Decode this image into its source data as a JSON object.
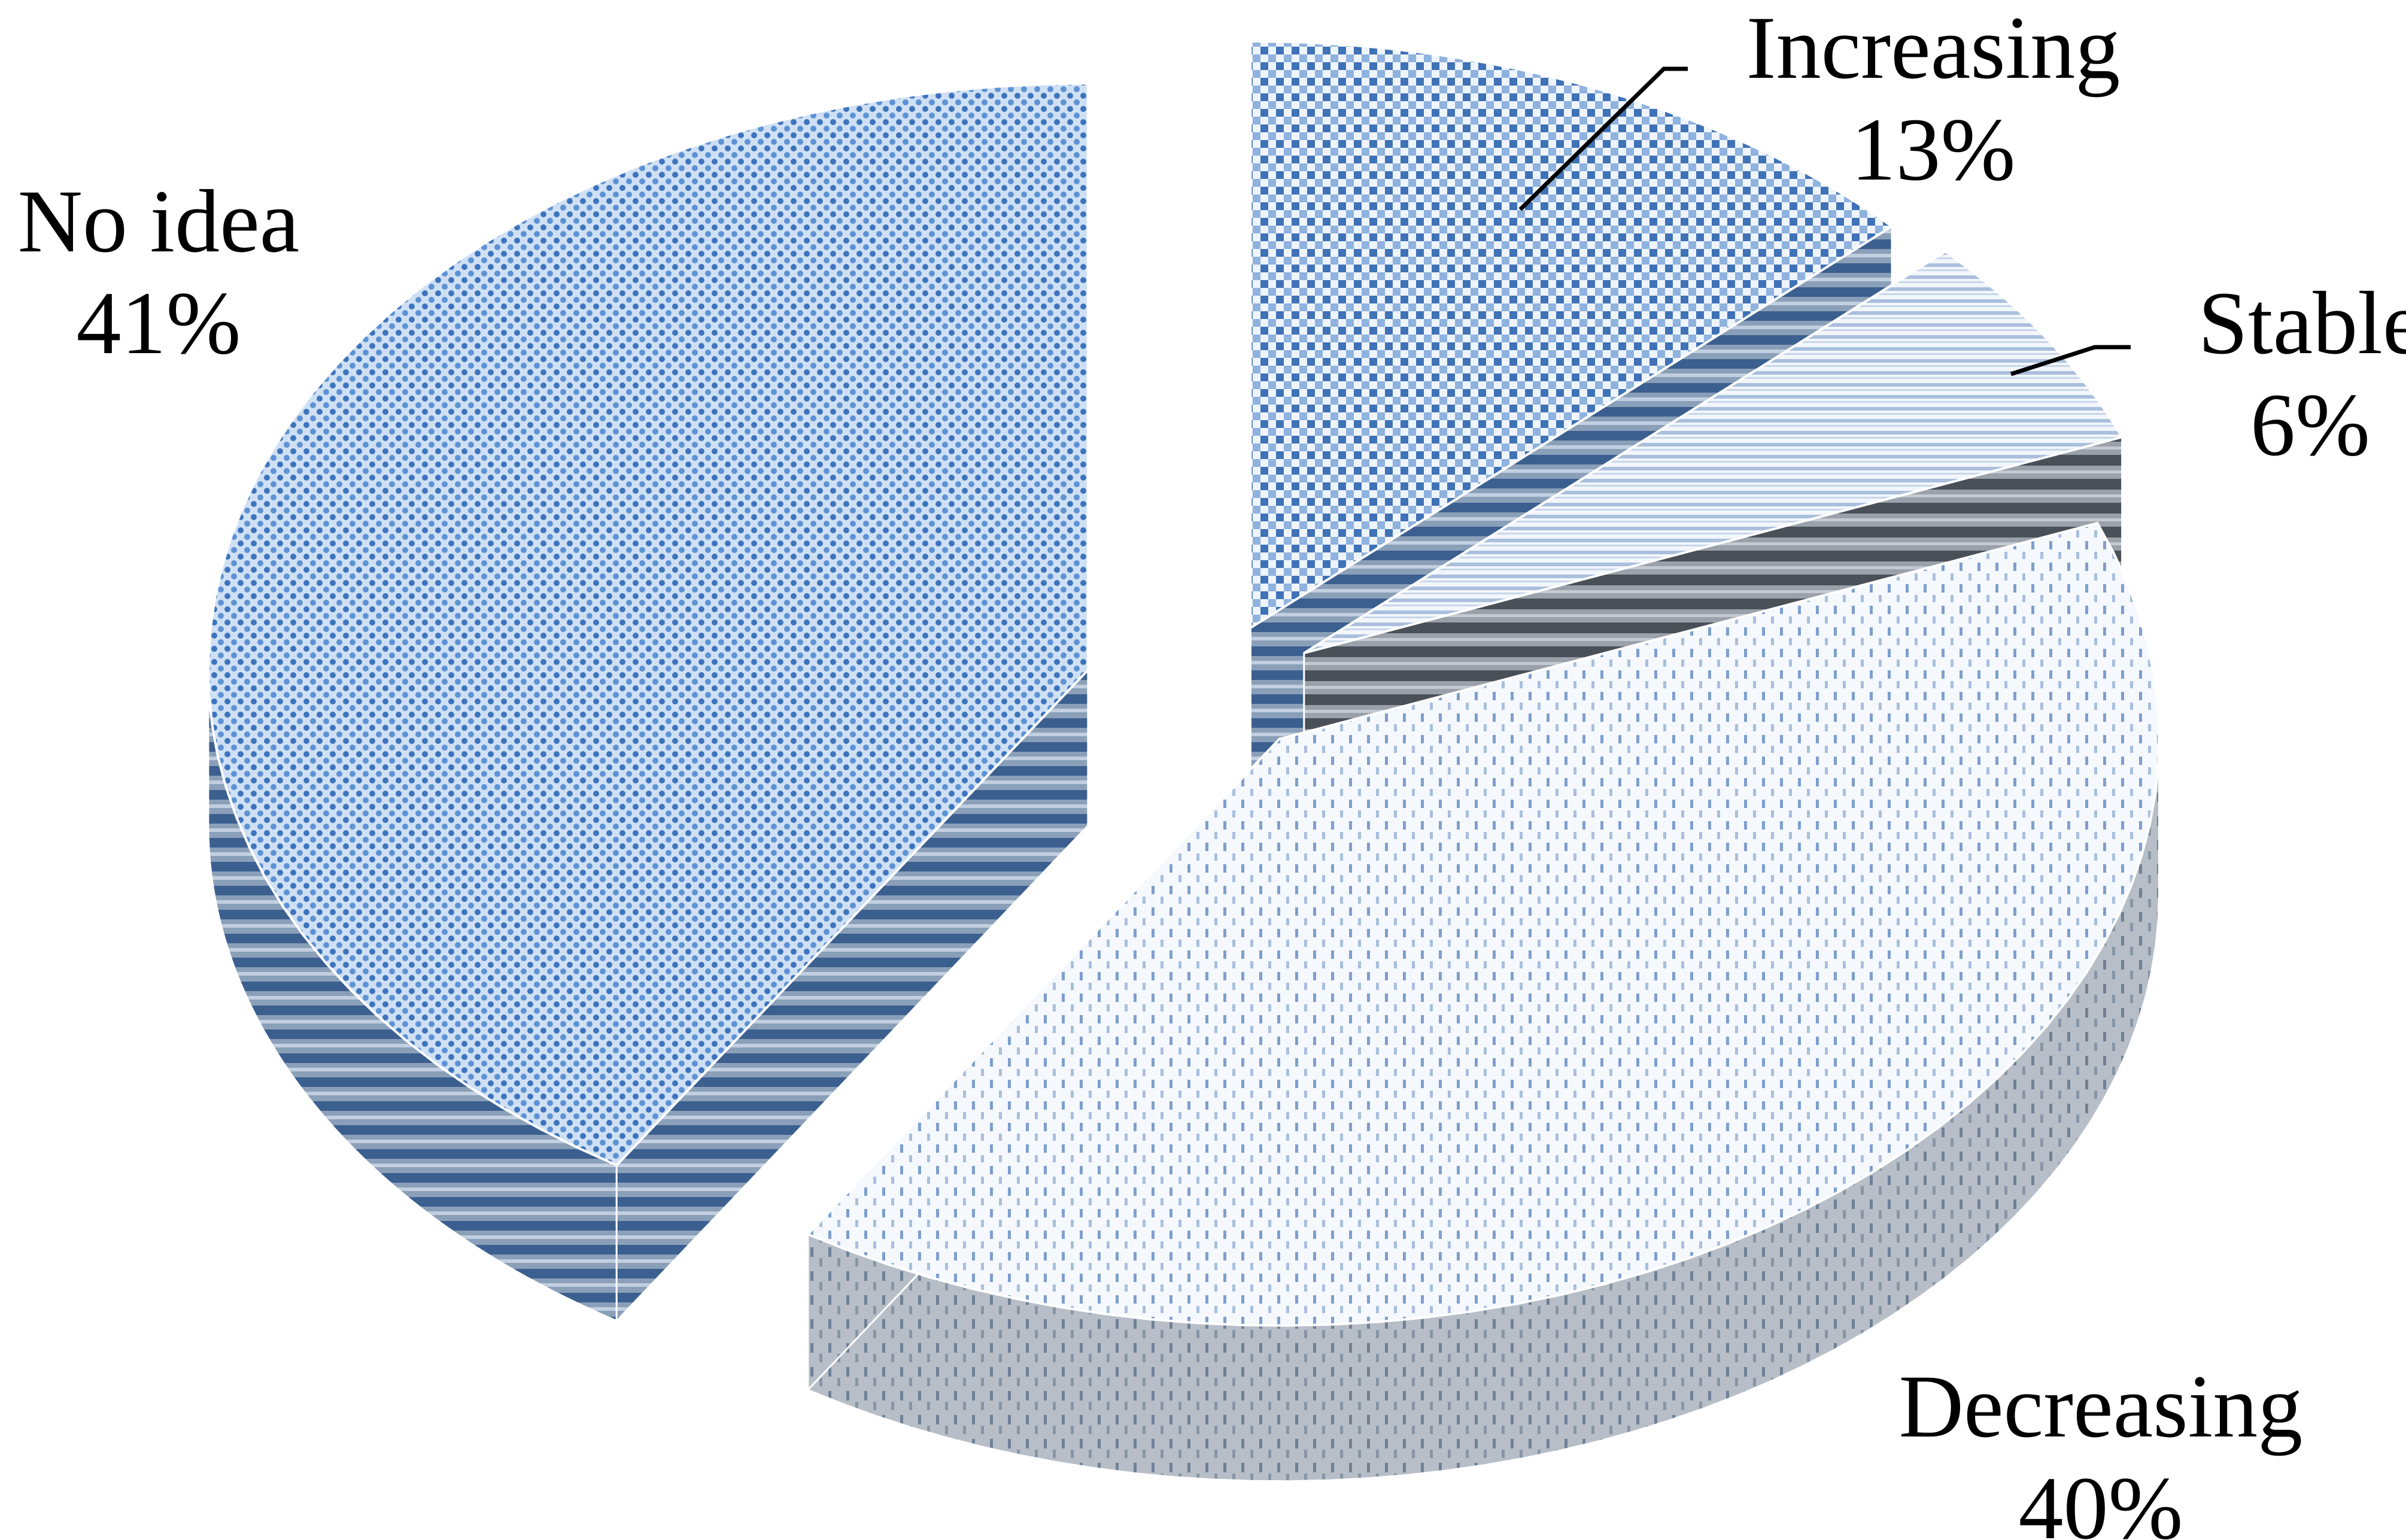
{
  "chart_data": {
    "type": "pie",
    "variant": "3d-exploded",
    "categories": [
      "Increasing",
      "Stable",
      "Decreasing",
      "No idea"
    ],
    "values": [
      13,
      6,
      40,
      41
    ],
    "labels": [
      {
        "name": "Increasing",
        "value": "13%"
      },
      {
        "name": "Stable",
        "value": "6%"
      },
      {
        "name": "Decreasing",
        "value": "40%"
      },
      {
        "name": "No idea",
        "value": "41%"
      }
    ],
    "colors": {
      "Increasing": "#4a78b8",
      "Stable": "#5e6670",
      "Decreasing": "#c8d4e6",
      "No idea": "#5b8fd0"
    },
    "title": "",
    "legend": "none",
    "data_labels": "category name and percentage beside each slice, leader lines for Increasing and Stable"
  }
}
